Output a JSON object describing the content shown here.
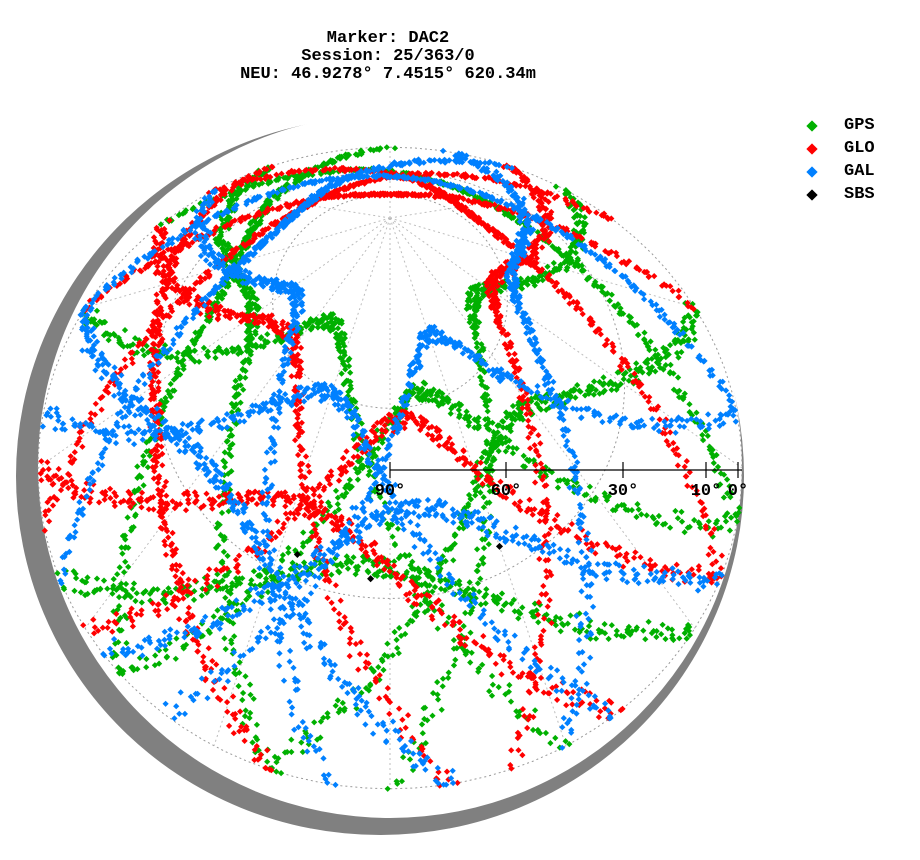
{
  "title": {
    "line1": "Marker: DAC2",
    "line2": "Session: 25/363/0",
    "line3": "NEU: 46.9278° 7.4515° 620.34m"
  },
  "legend": [
    {
      "label": "GPS",
      "color": "#00b000"
    },
    {
      "label": "GLO",
      "color": "#ff0000"
    },
    {
      "label": "GAL",
      "color": "#0080ff"
    },
    {
      "label": "SBS",
      "color": "#000000"
    }
  ],
  "chart_data": {
    "type": "scatter",
    "projection": "polar skyplot (elevation/azimuth), tilted 3D perspective",
    "elevation_ticks": [
      {
        "value": 90,
        "label": "90°"
      },
      {
        "value": 60,
        "label": "60°"
      },
      {
        "value": 30,
        "label": "30°"
      },
      {
        "value": 10,
        "label": "10°"
      },
      {
        "value": 0,
        "label": "0°"
      }
    ],
    "grid": true,
    "legend_position": "top-right",
    "series": [
      {
        "name": "GPS",
        "color": "#00b000",
        "arcs": [
          {
            "azStart": 200,
            "azEnd": 340,
            "elMax": 55
          },
          {
            "azStart": 150,
            "azEnd": 300,
            "elMax": 70
          },
          {
            "azStart": 100,
            "azEnd": 230,
            "elMax": 62
          },
          {
            "azStart": 30,
            "azEnd": 180,
            "elMax": 68
          },
          {
            "azStart": 320,
            "azEnd": 460,
            "elMax": 40
          },
          {
            "azStart": 120,
            "azEnd": 250,
            "elMax": 35
          },
          {
            "azStart": 230,
            "azEnd": 360,
            "elMax": 45
          },
          {
            "azStart": 60,
            "azEnd": 200,
            "elMax": 50
          }
        ]
      },
      {
        "name": "GLO",
        "color": "#ff0000",
        "arcs": [
          {
            "azStart": 300,
            "azEnd": 420,
            "elMax": 60
          },
          {
            "azStart": 170,
            "azEnd": 320,
            "elMax": 62
          },
          {
            "azStart": 110,
            "azEnd": 240,
            "elMax": 58
          },
          {
            "azStart": 20,
            "azEnd": 160,
            "elMax": 64
          },
          {
            "azStart": 260,
            "azEnd": 400,
            "elMax": 48
          },
          {
            "azStart": 140,
            "azEnd": 270,
            "elMax": 42
          },
          {
            "azStart": 200,
            "azEnd": 340,
            "elMax": 30
          },
          {
            "azStart": 330,
            "azEnd": 470,
            "elMax": 55
          }
        ]
      },
      {
        "name": "GAL",
        "color": "#0080ff",
        "arcs": [
          {
            "azStart": 190,
            "azEnd": 330,
            "elMax": 66
          },
          {
            "azStart": 140,
            "azEnd": 280,
            "elMax": 60
          },
          {
            "azStart": 80,
            "azEnd": 220,
            "elMax": 70
          },
          {
            "azStart": 10,
            "azEnd": 150,
            "elMax": 58
          },
          {
            "azStart": 250,
            "azEnd": 380,
            "elMax": 50
          },
          {
            "azStart": 110,
            "azEnd": 235,
            "elMax": 44
          },
          {
            "azStart": 300,
            "azEnd": 440,
            "elMax": 38
          },
          {
            "azStart": 170,
            "azEnd": 300,
            "elMax": 36
          }
        ]
      },
      {
        "name": "SBS",
        "color": "#000000",
        "points": [
          {
            "az": 205,
            "el": 34
          },
          {
            "az": 185,
            "el": 33
          },
          {
            "az": 150,
            "el": 34
          }
        ]
      }
    ]
  }
}
